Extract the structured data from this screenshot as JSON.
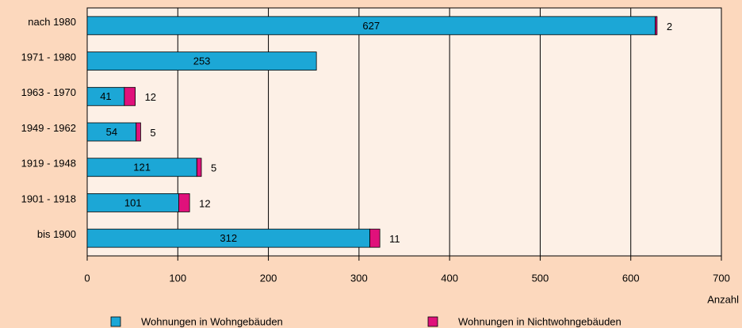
{
  "chart_data": {
    "type": "bar",
    "orientation": "horizontal",
    "stacked": true,
    "x_label": "Anzahl",
    "categories": [
      "nach 1980",
      "1971 - 1980",
      "1963 - 1970",
      "1949 - 1962",
      "1919 - 1948",
      "1901 - 1918",
      "bis 1900"
    ],
    "series": [
      {
        "name": "Wohnungen in Wohngebäuden",
        "color": "#1ca7d6",
        "values": [
          627,
          253,
          41,
          54,
          121,
          101,
          312
        ]
      },
      {
        "name": "Wohnungen in Nichtwohngebäuden",
        "color": "#e0117b",
        "values": [
          2,
          null,
          12,
          5,
          5,
          12,
          11
        ]
      }
    ],
    "xlim": [
      0,
      700
    ],
    "xticks": [
      0,
      100,
      200,
      300,
      400,
      500,
      600,
      700
    ],
    "grid": true
  }
}
